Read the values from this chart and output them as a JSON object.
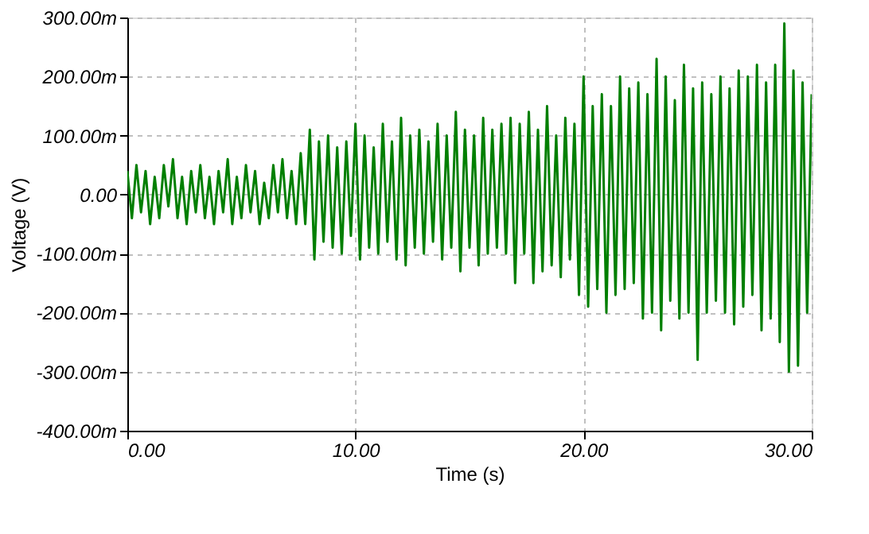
{
  "chart_data": {
    "type": "line",
    "xlabel": "Time (s)",
    "ylabel": "Voltage (V)",
    "x": [
      0,
      0.2,
      0.4,
      0.6,
      0.8,
      1,
      1.2,
      1.4,
      1.6,
      1.8,
      2,
      2.2,
      2.4,
      2.6,
      2.8,
      3,
      3.2,
      3.4,
      3.6,
      3.8,
      4,
      4.2,
      4.4,
      4.6,
      4.8,
      5,
      5.2,
      5.4,
      5.6,
      5.8,
      6,
      6.2,
      6.4,
      6.6,
      6.8,
      7,
      7.2,
      7.4,
      7.6,
      7.8,
      8,
      8.2,
      8.4,
      8.6,
      8.8,
      9,
      9.2,
      9.4,
      9.6,
      9.8,
      10,
      10.2,
      10.4,
      10.6,
      10.8,
      11,
      11.2,
      11.4,
      11.6,
      11.8,
      12,
      12.2,
      12.4,
      12.6,
      12.8,
      13,
      13.2,
      13.4,
      13.6,
      13.8,
      14,
      14.2,
      14.4,
      14.6,
      14.8,
      15,
      15.2,
      15.4,
      15.6,
      15.8,
      16,
      16.2,
      16.4,
      16.6,
      16.8,
      17,
      17.2,
      17.4,
      17.6,
      17.8,
      18,
      18.2,
      18.4,
      18.6,
      18.8,
      19,
      19.2,
      19.4,
      19.6,
      19.8,
      20,
      20.2,
      20.4,
      20.6,
      20.8,
      21,
      21.2,
      21.4,
      21.6,
      21.8,
      22,
      22.2,
      22.4,
      22.6,
      22.8,
      23,
      23.2,
      23.4,
      23.6,
      23.8,
      24,
      24.2,
      24.4,
      24.6,
      24.8,
      25,
      25.2,
      25.4,
      25.6,
      25.8,
      26,
      26.2,
      26.4,
      26.6,
      26.8,
      27,
      27.2,
      27.4,
      27.6,
      27.8,
      28,
      28.2,
      28.4,
      28.6,
      28.8,
      29,
      29.2,
      29.4,
      29.6,
      29.8,
      30
    ],
    "series": [
      {
        "color": "#007f00",
        "values": [
          40,
          -40,
          50,
          -30,
          40,
          -50,
          30,
          -40,
          50,
          -20,
          60,
          -40,
          30,
          -50,
          40,
          -30,
          50,
          -40,
          30,
          -50,
          40,
          -30,
          60,
          -50,
          30,
          -40,
          50,
          -30,
          40,
          -50,
          20,
          -40,
          50,
          -30,
          60,
          -40,
          40,
          -50,
          70,
          -50,
          110,
          -110,
          90,
          -80,
          100,
          -90,
          80,
          -100,
          90,
          -70,
          120,
          -110,
          100,
          -90,
          80,
          -100,
          120,
          -80,
          90,
          -110,
          130,
          -120,
          100,
          -90,
          110,
          -100,
          90,
          -80,
          120,
          -110,
          100,
          -90,
          140,
          -130,
          110,
          -90,
          100,
          -120,
          130,
          -100,
          110,
          -90,
          120,
          -100,
          130,
          -150,
          120,
          -100,
          140,
          -150,
          110,
          -130,
          150,
          -120,
          100,
          -140,
          130,
          -110,
          120,
          -170,
          200,
          -190,
          150,
          -160,
          170,
          -200,
          150,
          -170,
          200,
          -160,
          180,
          -150,
          190,
          -210,
          170,
          -200,
          230,
          -230,
          200,
          -180,
          160,
          -210,
          220,
          -200,
          180,
          -280,
          190,
          -200,
          170,
          -180,
          200,
          -200,
          180,
          -220,
          210,
          -190,
          200,
          -170,
          220,
          -230,
          190,
          -210,
          220,
          -250,
          290,
          -300,
          210,
          -290,
          190,
          -200,
          170
        ]
      }
    ],
    "xlim": [
      0,
      30
    ],
    "xticks": [
      {
        "value": 0,
        "label": "0.00"
      },
      {
        "value": 10,
        "label": "10.00"
      },
      {
        "value": 20,
        "label": "20.00"
      },
      {
        "value": 30,
        "label": "30.00"
      }
    ],
    "ylim": [
      -400,
      300
    ],
    "yticks": [
      {
        "value": -400,
        "label": "-400.00m"
      },
      {
        "value": -300,
        "label": "-300.00m"
      },
      {
        "value": -200,
        "label": "-200.00m"
      },
      {
        "value": -100,
        "label": "-100.00m"
      },
      {
        "value": 0,
        "label": "0.00"
      },
      {
        "value": 100,
        "label": "100.00m"
      },
      {
        "value": 200,
        "label": "200.00m"
      },
      {
        "value": 300,
        "label": "300.00m"
      }
    ],
    "grid": true,
    "line_style": "solid",
    "marker": "none"
  }
}
